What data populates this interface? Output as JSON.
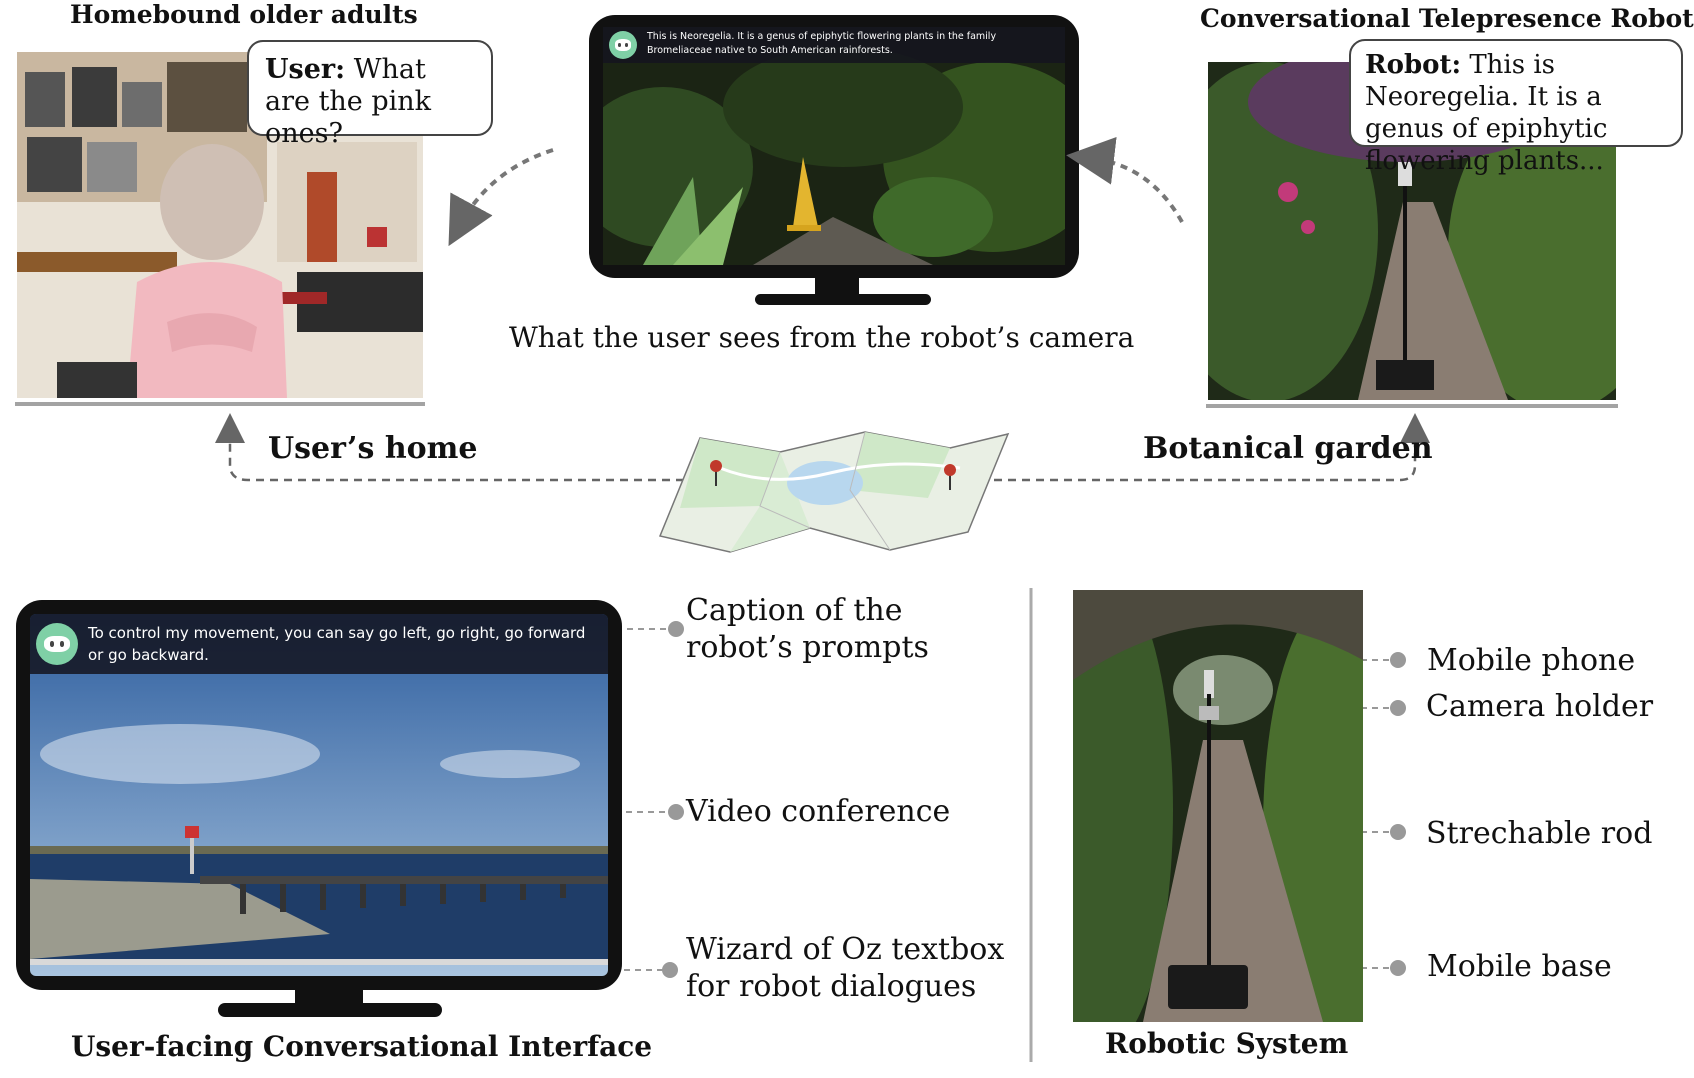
{
  "top": {
    "left_title": "Homebound older adults",
    "user_bubble": {
      "speaker": "User:",
      "text": "What are the pink ones?"
    },
    "center_caption": "What the user sees from the robot’s camera",
    "center_screen_caption": "This is Neoregelia. It is a genus of epiphytic flowering plants in the family Bromeliaceae native to South American rainforests.",
    "right_title": "Conversational Telepresence Robot",
    "robot_bubble": {
      "speaker": "Robot:",
      "text": "This is Neoregelia. It is a genus of epiphytic flowering plants..."
    }
  },
  "middle": {
    "users_home": "User’s home",
    "botanical_garden": "Botanical garden"
  },
  "bottom_left": {
    "screen_caption": "To control my movement, you can say go left, go right, go forward or go backward.",
    "label_caption": "Caption of the robot’s prompts",
    "label_video": "Video conference",
    "label_wizard": "Wizard of Oz textbox for robot dialogues",
    "title": "User-facing Conversational Interface"
  },
  "bottom_right": {
    "label_phone": "Mobile phone",
    "label_holder": "Camera holder",
    "label_rod": "Strechable rod",
    "label_base": "Mobile base",
    "title": "Robotic System"
  },
  "colors": {
    "pin": "#c0392b",
    "map_green": "#cfe8c8",
    "map_water": "#b8d7ee",
    "lake_sky_top": "#2f5f9f",
    "lake_water": "#1f3d68",
    "garden_dark": "#1f2a18",
    "garden_path": "#8a7d72"
  }
}
